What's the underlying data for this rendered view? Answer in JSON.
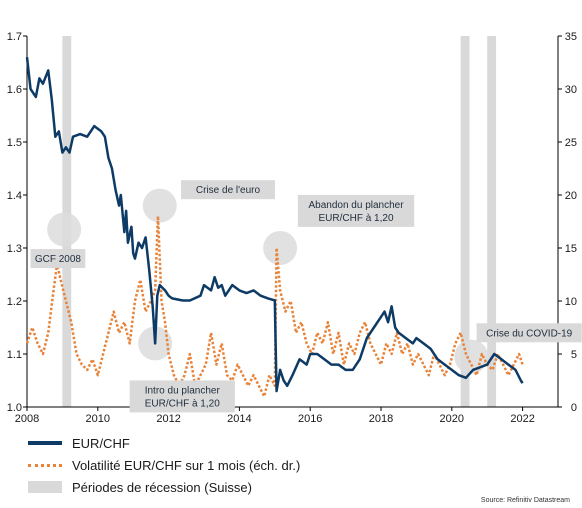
{
  "chart_data": {
    "type": "line",
    "x_range": [
      2008,
      2023
    ],
    "x_ticks": [
      "2008",
      "2010",
      "2012",
      "2014",
      "2016",
      "2018",
      "2020",
      "2022"
    ],
    "y_left_range": [
      1.0,
      1.7
    ],
    "y_left_ticks": [
      "1.0",
      "1.1",
      "1.2",
      "1.3",
      "1.4",
      "1.5",
      "1.6",
      "1.7"
    ],
    "y_right_range": [
      0,
      35
    ],
    "y_right_ticks": [
      "0",
      "5",
      "10",
      "15",
      "20",
      "25",
      "30",
      "35"
    ],
    "recession_periods": [
      [
        2009.0,
        2009.25
      ],
      [
        2020.25,
        2020.5
      ],
      [
        2021.0,
        2021.25
      ]
    ],
    "series": [
      {
        "name": "EUR/CHF",
        "axis": "left",
        "color": "#0d3b66",
        "points": [
          [
            2008.0,
            1.66
          ],
          [
            2008.1,
            1.6
          ],
          [
            2008.25,
            1.585
          ],
          [
            2008.35,
            1.62
          ],
          [
            2008.45,
            1.61
          ],
          [
            2008.6,
            1.635
          ],
          [
            2008.7,
            1.58
          ],
          [
            2008.8,
            1.51
          ],
          [
            2008.9,
            1.52
          ],
          [
            2009.0,
            1.48
          ],
          [
            2009.1,
            1.49
          ],
          [
            2009.2,
            1.48
          ],
          [
            2009.3,
            1.51
          ],
          [
            2009.5,
            1.515
          ],
          [
            2009.7,
            1.51
          ],
          [
            2009.9,
            1.53
          ],
          [
            2010.0,
            1.525
          ],
          [
            2010.1,
            1.52
          ],
          [
            2010.2,
            1.51
          ],
          [
            2010.3,
            1.47
          ],
          [
            2010.4,
            1.45
          ],
          [
            2010.5,
            1.41
          ],
          [
            2010.6,
            1.38
          ],
          [
            2010.65,
            1.4
          ],
          [
            2010.75,
            1.33
          ],
          [
            2010.8,
            1.37
          ],
          [
            2010.85,
            1.31
          ],
          [
            2010.95,
            1.34
          ],
          [
            2011.0,
            1.29
          ],
          [
            2011.05,
            1.28
          ],
          [
            2011.15,
            1.31
          ],
          [
            2011.25,
            1.3
          ],
          [
            2011.35,
            1.32
          ],
          [
            2011.45,
            1.26
          ],
          [
            2011.55,
            1.19
          ],
          [
            2011.62,
            1.12
          ],
          [
            2011.68,
            1.21
          ],
          [
            2011.75,
            1.23
          ],
          [
            2011.9,
            1.22
          ],
          [
            2012.0,
            1.21
          ],
          [
            2012.1,
            1.205
          ],
          [
            2012.4,
            1.201
          ],
          [
            2012.6,
            1.201
          ],
          [
            2012.9,
            1.21
          ],
          [
            2013.0,
            1.23
          ],
          [
            2013.2,
            1.22
          ],
          [
            2013.3,
            1.245
          ],
          [
            2013.4,
            1.225
          ],
          [
            2013.5,
            1.23
          ],
          [
            2013.6,
            1.21
          ],
          [
            2013.8,
            1.23
          ],
          [
            2014.0,
            1.22
          ],
          [
            2014.2,
            1.215
          ],
          [
            2014.4,
            1.22
          ],
          [
            2014.6,
            1.21
          ],
          [
            2014.8,
            1.205
          ],
          [
            2015.0,
            1.201
          ],
          [
            2015.05,
            1.03
          ],
          [
            2015.15,
            1.07
          ],
          [
            2015.25,
            1.05
          ],
          [
            2015.35,
            1.04
          ],
          [
            2015.5,
            1.06
          ],
          [
            2015.7,
            1.09
          ],
          [
            2015.9,
            1.08
          ],
          [
            2016.0,
            1.1
          ],
          [
            2016.2,
            1.1
          ],
          [
            2016.4,
            1.09
          ],
          [
            2016.6,
            1.08
          ],
          [
            2016.8,
            1.08
          ],
          [
            2017.0,
            1.07
          ],
          [
            2017.2,
            1.07
          ],
          [
            2017.4,
            1.09
          ],
          [
            2017.6,
            1.13
          ],
          [
            2017.8,
            1.15
          ],
          [
            2018.0,
            1.17
          ],
          [
            2018.1,
            1.18
          ],
          [
            2018.2,
            1.16
          ],
          [
            2018.3,
            1.19
          ],
          [
            2018.4,
            1.15
          ],
          [
            2018.5,
            1.14
          ],
          [
            2018.7,
            1.13
          ],
          [
            2018.9,
            1.12
          ],
          [
            2019.0,
            1.13
          ],
          [
            2019.2,
            1.12
          ],
          [
            2019.4,
            1.11
          ],
          [
            2019.6,
            1.09
          ],
          [
            2019.8,
            1.08
          ],
          [
            2020.0,
            1.07
          ],
          [
            2020.2,
            1.06
          ],
          [
            2020.4,
            1.055
          ],
          [
            2020.6,
            1.07
          ],
          [
            2020.8,
            1.075
          ],
          [
            2021.0,
            1.08
          ],
          [
            2021.2,
            1.1
          ],
          [
            2021.4,
            1.09
          ],
          [
            2021.6,
            1.08
          ],
          [
            2021.8,
            1.07
          ],
          [
            2021.95,
            1.05
          ],
          [
            2022.0,
            1.045
          ]
        ]
      },
      {
        "name": "Volatilité EUR/CHF sur 1 mois (éch. dr.)",
        "axis": "right",
        "color": "#e8833a",
        "points": [
          [
            2008.0,
            6
          ],
          [
            2008.15,
            7.5
          ],
          [
            2008.3,
            6
          ],
          [
            2008.45,
            5
          ],
          [
            2008.6,
            7
          ],
          [
            2008.75,
            11
          ],
          [
            2008.85,
            13.5
          ],
          [
            2008.95,
            12
          ],
          [
            2009.1,
            10
          ],
          [
            2009.25,
            8
          ],
          [
            2009.4,
            5
          ],
          [
            2009.55,
            4
          ],
          [
            2009.7,
            3.5
          ],
          [
            2009.85,
            4.5
          ],
          [
            2010.0,
            3
          ],
          [
            2010.15,
            5
          ],
          [
            2010.3,
            7
          ],
          [
            2010.45,
            9
          ],
          [
            2010.6,
            7
          ],
          [
            2010.75,
            8
          ],
          [
            2010.9,
            6
          ],
          [
            2011.05,
            10
          ],
          [
            2011.2,
            12
          ],
          [
            2011.35,
            9
          ],
          [
            2011.5,
            10
          ],
          [
            2011.62,
            11
          ],
          [
            2011.7,
            18
          ],
          [
            2011.8,
            10
          ],
          [
            2011.9,
            8
          ],
          [
            2012.0,
            5
          ],
          [
            2012.15,
            3
          ],
          [
            2012.3,
            2
          ],
          [
            2012.45,
            3
          ],
          [
            2012.6,
            5
          ],
          [
            2012.75,
            2
          ],
          [
            2012.9,
            3
          ],
          [
            2013.05,
            4
          ],
          [
            2013.2,
            7
          ],
          [
            2013.35,
            4
          ],
          [
            2013.5,
            6
          ],
          [
            2013.65,
            3
          ],
          [
            2013.8,
            2.5
          ],
          [
            2013.95,
            4
          ],
          [
            2014.1,
            3
          ],
          [
            2014.25,
            2
          ],
          [
            2014.4,
            3
          ],
          [
            2014.55,
            2
          ],
          [
            2014.7,
            1
          ],
          [
            2014.85,
            3
          ],
          [
            2015.0,
            2
          ],
          [
            2015.05,
            15
          ],
          [
            2015.15,
            11
          ],
          [
            2015.3,
            9
          ],
          [
            2015.45,
            10
          ],
          [
            2015.6,
            7
          ],
          [
            2015.75,
            8
          ],
          [
            2015.9,
            6
          ],
          [
            2016.05,
            5
          ],
          [
            2016.2,
            7
          ],
          [
            2016.35,
            6
          ],
          [
            2016.5,
            8
          ],
          [
            2016.65,
            5
          ],
          [
            2016.8,
            7
          ],
          [
            2016.95,
            4
          ],
          [
            2017.1,
            6
          ],
          [
            2017.25,
            5
          ],
          [
            2017.4,
            7
          ],
          [
            2017.55,
            8
          ],
          [
            2017.7,
            6
          ],
          [
            2017.85,
            5
          ],
          [
            2018.0,
            4
          ],
          [
            2018.15,
            6
          ],
          [
            2018.3,
            5
          ],
          [
            2018.45,
            7
          ],
          [
            2018.6,
            5
          ],
          [
            2018.75,
            6
          ],
          [
            2018.9,
            4
          ],
          [
            2019.05,
            5
          ],
          [
            2019.2,
            4
          ],
          [
            2019.35,
            3
          ],
          [
            2019.5,
            5
          ],
          [
            2019.65,
            4
          ],
          [
            2019.8,
            3
          ],
          [
            2019.95,
            4
          ],
          [
            2020.1,
            6
          ],
          [
            2020.25,
            7
          ],
          [
            2020.4,
            5
          ],
          [
            2020.55,
            4
          ],
          [
            2020.7,
            3
          ],
          [
            2020.85,
            5
          ],
          [
            2021.0,
            4
          ],
          [
            2021.15,
            3.5
          ],
          [
            2021.3,
            5
          ],
          [
            2021.45,
            4
          ],
          [
            2021.6,
            3
          ],
          [
            2021.75,
            4
          ],
          [
            2021.9,
            5
          ],
          [
            2022.0,
            4
          ]
        ]
      }
    ],
    "annotations": [
      {
        "text": "GCF 2008",
        "at": [
          2009.05,
          1.335
        ],
        "box_at": [
          2008.1,
          1.28
        ]
      },
      {
        "text": "Crise de l'euro",
        "at": [
          2011.75,
          1.38
        ],
        "box_at": [
          2012.35,
          1.41
        ]
      },
      {
        "text": "Intro du plancher\nEUR/CHF à 1,20",
        "at": [
          2011.62,
          1.12
        ],
        "box_at": [
          2010.9,
          1.02
        ]
      },
      {
        "text": "Abandon du plancher\nEUR/CHF à 1,20",
        "at": [
          2015.15,
          1.3
        ],
        "box_at": [
          2015.65,
          1.37
        ]
      },
      {
        "text": "Crise du COVID-19",
        "at": [
          2020.55,
          1.095
        ],
        "box_at": [
          2020.7,
          1.14
        ]
      }
    ]
  },
  "legend": {
    "eurchf": "EUR/CHF",
    "vol": "Volatilité EUR/CHF sur 1 mois (éch. dr.)",
    "recession": "Périodes de récession (Suisse)"
  },
  "source": "Source: Refinitiv Datastream"
}
